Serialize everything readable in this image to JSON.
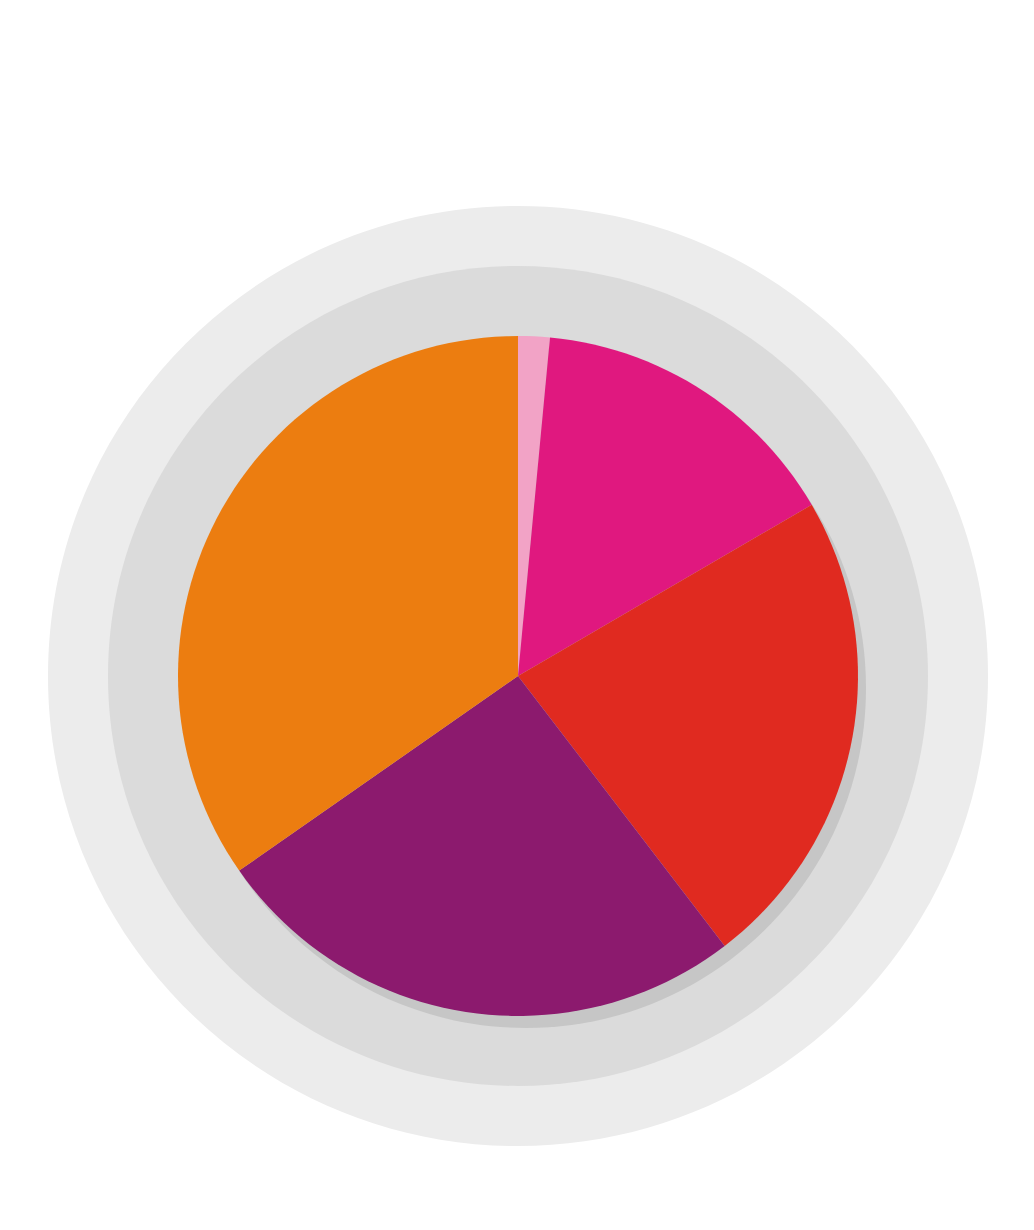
{
  "chart_data": {
    "type": "pie",
    "categories": [
      null,
      null,
      null,
      null,
      null
    ],
    "values": [
      1.5,
      15.1,
      23.0,
      25.7,
      34.7
    ],
    "colors": [
      "#f2a3c6",
      "#e0187f",
      "#e02a20",
      "#8c1a6e",
      "#ec7d10"
    ]
  }
}
